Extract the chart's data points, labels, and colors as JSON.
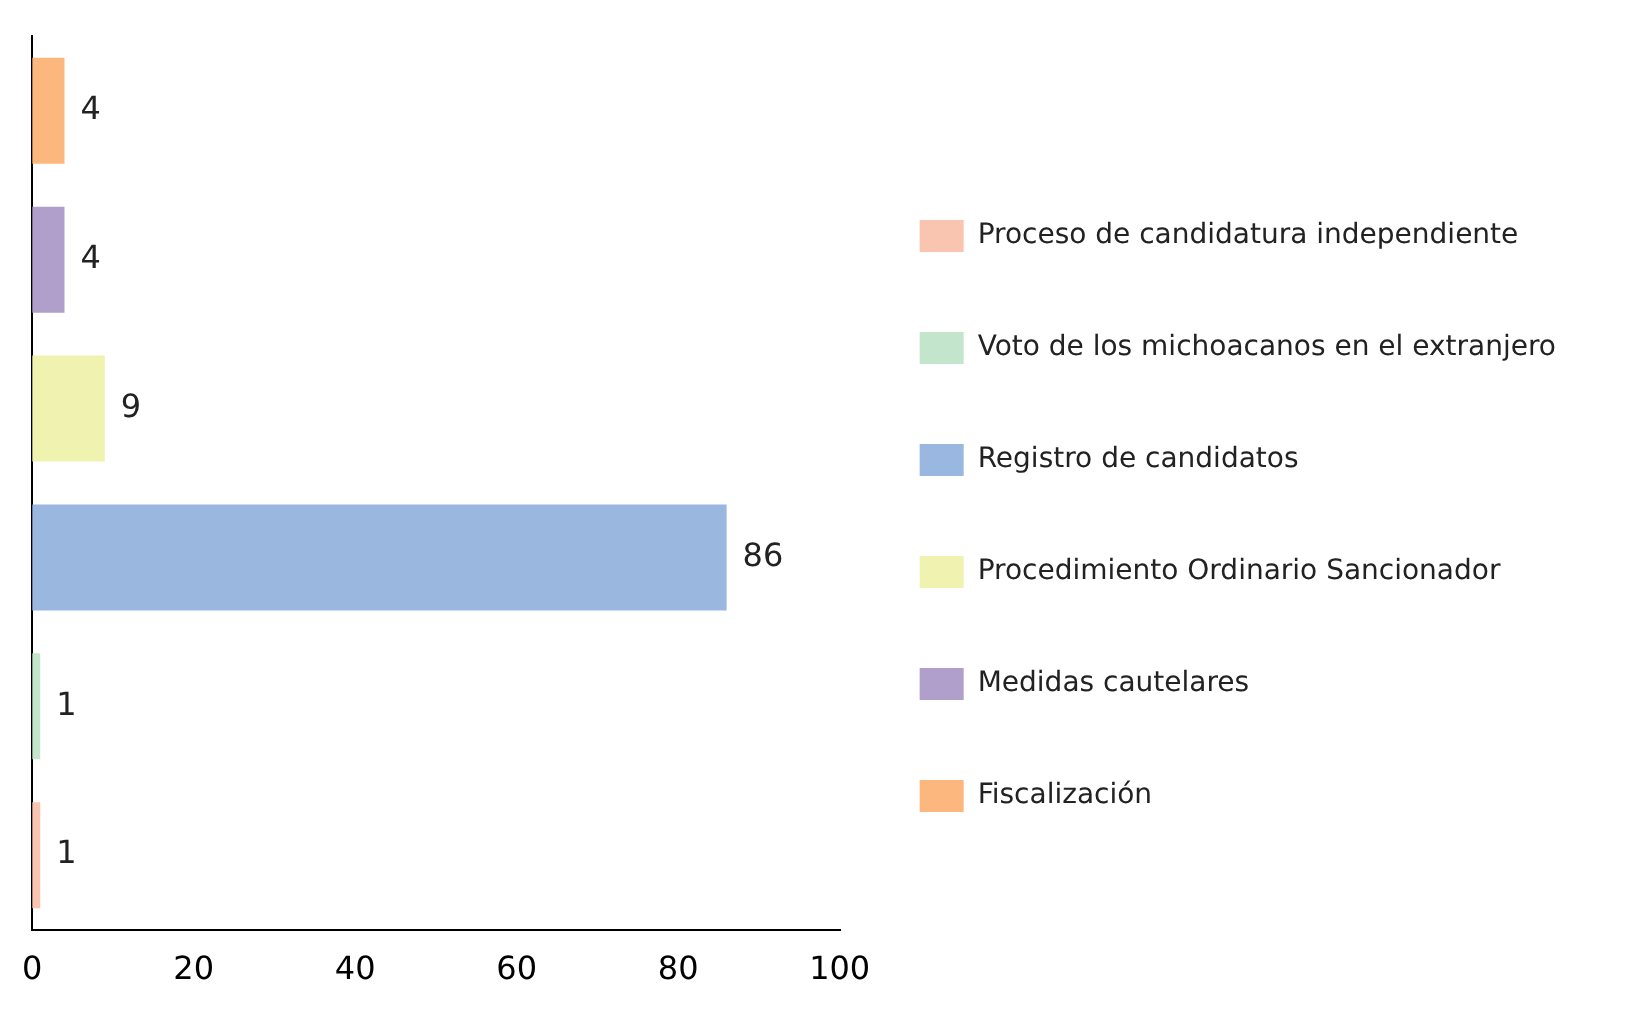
{
  "chart_data": {
    "type": "bar",
    "orientation": "horizontal",
    "stacked": true,
    "categories": [
      null,
      null,
      null,
      null,
      null,
      null
    ],
    "series": [
      {
        "name": "Proceso de candidatura independiente",
        "color": "#f9c5b0",
        "values": [
          null,
          null,
          null,
          null,
          null,
          1
        ]
      },
      {
        "name": "Voto de los michoacanos en el extranjero",
        "color": "#c2e5cc",
        "values": [
          null,
          null,
          null,
          null,
          1,
          null
        ]
      },
      {
        "name": "Registro de candidatos",
        "color": "#9ab7df",
        "values": [
          null,
          null,
          null,
          86,
          null,
          null
        ]
      },
      {
        "name": "Procedimiento Ordinario Sancionador",
        "color": "#f0f2b0",
        "values": [
          null,
          null,
          9,
          null,
          null,
          null
        ]
      },
      {
        "name": "Medidas cautelares",
        "color": "#b09ecb",
        "values": [
          null,
          4,
          null,
          null,
          null,
          null
        ]
      },
      {
        "name": "Fiscalización",
        "color": "#fbb77e",
        "values": [
          4,
          null,
          null,
          null,
          null,
          null
        ]
      }
    ],
    "xlim": [
      0,
      100
    ],
    "xticks": [
      0,
      20,
      40,
      60,
      80,
      100
    ],
    "grid": false,
    "legend": "right",
    "data_labels": true
  }
}
